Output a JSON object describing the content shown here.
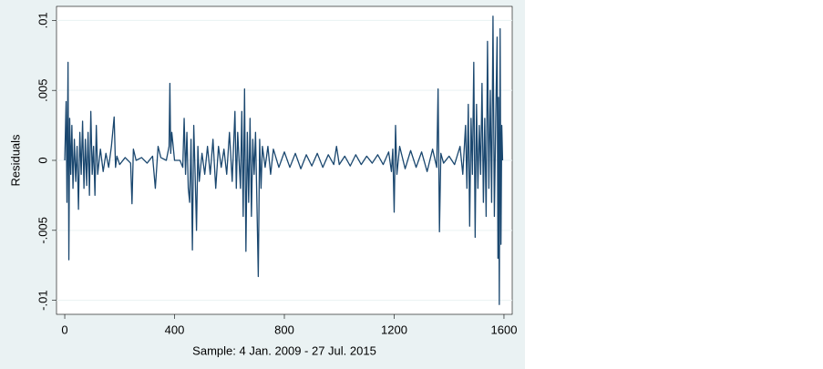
{
  "chart_data": {
    "type": "line",
    "xlabel": "Sample: 4 Jan. 2009 - 27 Jul. 2015",
    "ylabel": "Residuals",
    "color": "#1a476f",
    "grid": true,
    "xlim": [
      -30,
      1630
    ],
    "ylim": [
      -0.011,
      0.011
    ],
    "xticks": [
      0,
      400,
      800,
      1200,
      1600
    ],
    "yticks": [
      {
        "value": -0.01,
        "label": "-.01"
      },
      {
        "value": -0.005,
        "label": "-.005"
      },
      0,
      {
        "value": 0.005,
        "label": ".005"
      },
      {
        "value": 0.01,
        "label": ".01"
      }
    ],
    "x": [
      0,
      5,
      8,
      12,
      15,
      18,
      22,
      26,
      30,
      35,
      40,
      45,
      50,
      55,
      60,
      65,
      70,
      75,
      80,
      85,
      90,
      95,
      100,
      105,
      110,
      115,
      120,
      130,
      140,
      150,
      160,
      170,
      180,
      185,
      190,
      200,
      220,
      240,
      245,
      250,
      260,
      280,
      300,
      320,
      330,
      340,
      350,
      370,
      380,
      383,
      386,
      390,
      400,
      420,
      430,
      435,
      440,
      445,
      450,
      455,
      460,
      465,
      470,
      475,
      480,
      485,
      490,
      500,
      510,
      520,
      530,
      540,
      550,
      560,
      570,
      580,
      590,
      600,
      610,
      620,
      625,
      630,
      640,
      645,
      650,
      655,
      660,
      665,
      670,
      675,
      680,
      685,
      690,
      695,
      700,
      705,
      710,
      715,
      720,
      730,
      740,
      750,
      760,
      780,
      800,
      820,
      840,
      860,
      880,
      900,
      920,
      940,
      960,
      980,
      990,
      1000,
      1020,
      1040,
      1060,
      1080,
      1100,
      1120,
      1140,
      1160,
      1180,
      1190,
      1195,
      1200,
      1205,
      1210,
      1220,
      1240,
      1260,
      1280,
      1300,
      1320,
      1340,
      1355,
      1360,
      1365,
      1370,
      1380,
      1400,
      1420,
      1440,
      1450,
      1460,
      1465,
      1470,
      1475,
      1480,
      1485,
      1490,
      1495,
      1500,
      1505,
      1510,
      1515,
      1520,
      1525,
      1530,
      1535,
      1540,
      1545,
      1550,
      1555,
      1560,
      1565,
      1570,
      1575,
      1578,
      1580,
      1583,
      1586,
      1589,
      1592,
      1595
    ],
    "values": [
      0,
      0.0042,
      -0.003,
      0.007,
      -0.0071,
      0.003,
      -0.001,
      0.0025,
      -0.002,
      0.0015,
      -0.0015,
      0.001,
      -0.0035,
      0.002,
      -0.001,
      0.0028,
      -0.002,
      0.0015,
      -0.0018,
      0.002,
      -0.0025,
      0.0035,
      -0.001,
      0.001,
      -0.0025,
      0.0025,
      -0.001,
      0.0008,
      -0.0008,
      0.0005,
      -0.0005,
      0.001,
      0.0031,
      -0.0005,
      0.0003,
      -0.0003,
      0.0002,
      -0.0002,
      -0.0031,
      0.0008,
      0,
      0.0002,
      -0.0002,
      0.0003,
      -0.002,
      0.001,
      0.0002,
      0,
      0.001,
      0.0055,
      0.0005,
      0.002,
      0,
      0,
      -0.0005,
      0.003,
      -0.001,
      0.002,
      -0.002,
      -0.003,
      0.0015,
      -0.0064,
      0.0025,
      -0.001,
      -0.005,
      0.001,
      -0.0015,
      0.0005,
      -0.001,
      0.001,
      -0.001,
      0.0015,
      -0.002,
      0.001,
      -0.0005,
      0.0008,
      -0.001,
      0.002,
      -0.0015,
      0.0035,
      -0.002,
      0.002,
      -0.002,
      0.0035,
      -0.004,
      0.0051,
      -0.0065,
      0.002,
      -0.003,
      0.003,
      -0.004,
      0.0015,
      -0.001,
      0.002,
      -0.003,
      -0.0083,
      0.0015,
      -0.002,
      0.001,
      -0.0005,
      0.001,
      -0.001,
      0.0008,
      -0.0005,
      0.0006,
      -0.0005,
      0.0005,
      -0.0006,
      0.0004,
      -0.0004,
      0.0005,
      -0.0005,
      0.0004,
      -0.0003,
      0.001,
      -0.0003,
      0.0003,
      -0.0004,
      0.0004,
      -0.0003,
      0.0003,
      -0.0002,
      0.0004,
      -0.0003,
      0.0006,
      -0.0008,
      0.0008,
      -0.0037,
      0.0025,
      -0.001,
      0.001,
      -0.0006,
      0.0007,
      -0.0005,
      0.0006,
      -0.0008,
      0.0008,
      -0.0005,
      0.0051,
      -0.0051,
      0.0005,
      -0.0002,
      0.0003,
      -0.0003,
      0.001,
      -0.001,
      0.0025,
      -0.002,
      0.004,
      -0.0047,
      0.003,
      -0.001,
      0.007,
      -0.0055,
      0.004,
      -0.002,
      0.0025,
      -0.001,
      0.0055,
      -0.003,
      0.003,
      -0.004,
      0.0085,
      -0.002,
      0.005,
      -0.003,
      0.0103,
      -0.004,
      0.003,
      0.0088,
      -0.007,
      0.0045,
      -0.0103,
      0.0094,
      -0.006,
      0.0025,
      0
    ]
  }
}
